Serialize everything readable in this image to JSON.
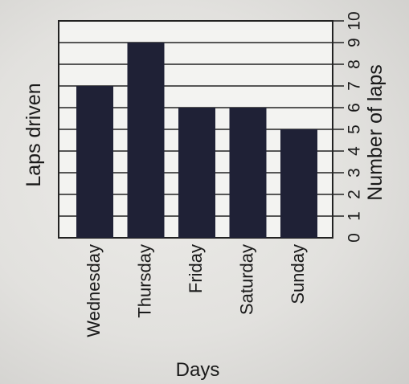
{
  "chart_data": {
    "type": "bar",
    "title": "Laps driven",
    "xlabel": "Days",
    "ylabel": "Number of laps",
    "categories": [
      "Wednesday",
      "Thursday",
      "Friday",
      "Saturday",
      "Sunday"
    ],
    "values": [
      7,
      9,
      6,
      6,
      5
    ],
    "ylim": [
      0,
      10
    ],
    "yticks": [
      "0",
      "1",
      "2",
      "3",
      "4",
      "5",
      "6",
      "7",
      "8",
      "9",
      "10"
    ],
    "grid": true,
    "bar_color": "#1f2136"
  }
}
